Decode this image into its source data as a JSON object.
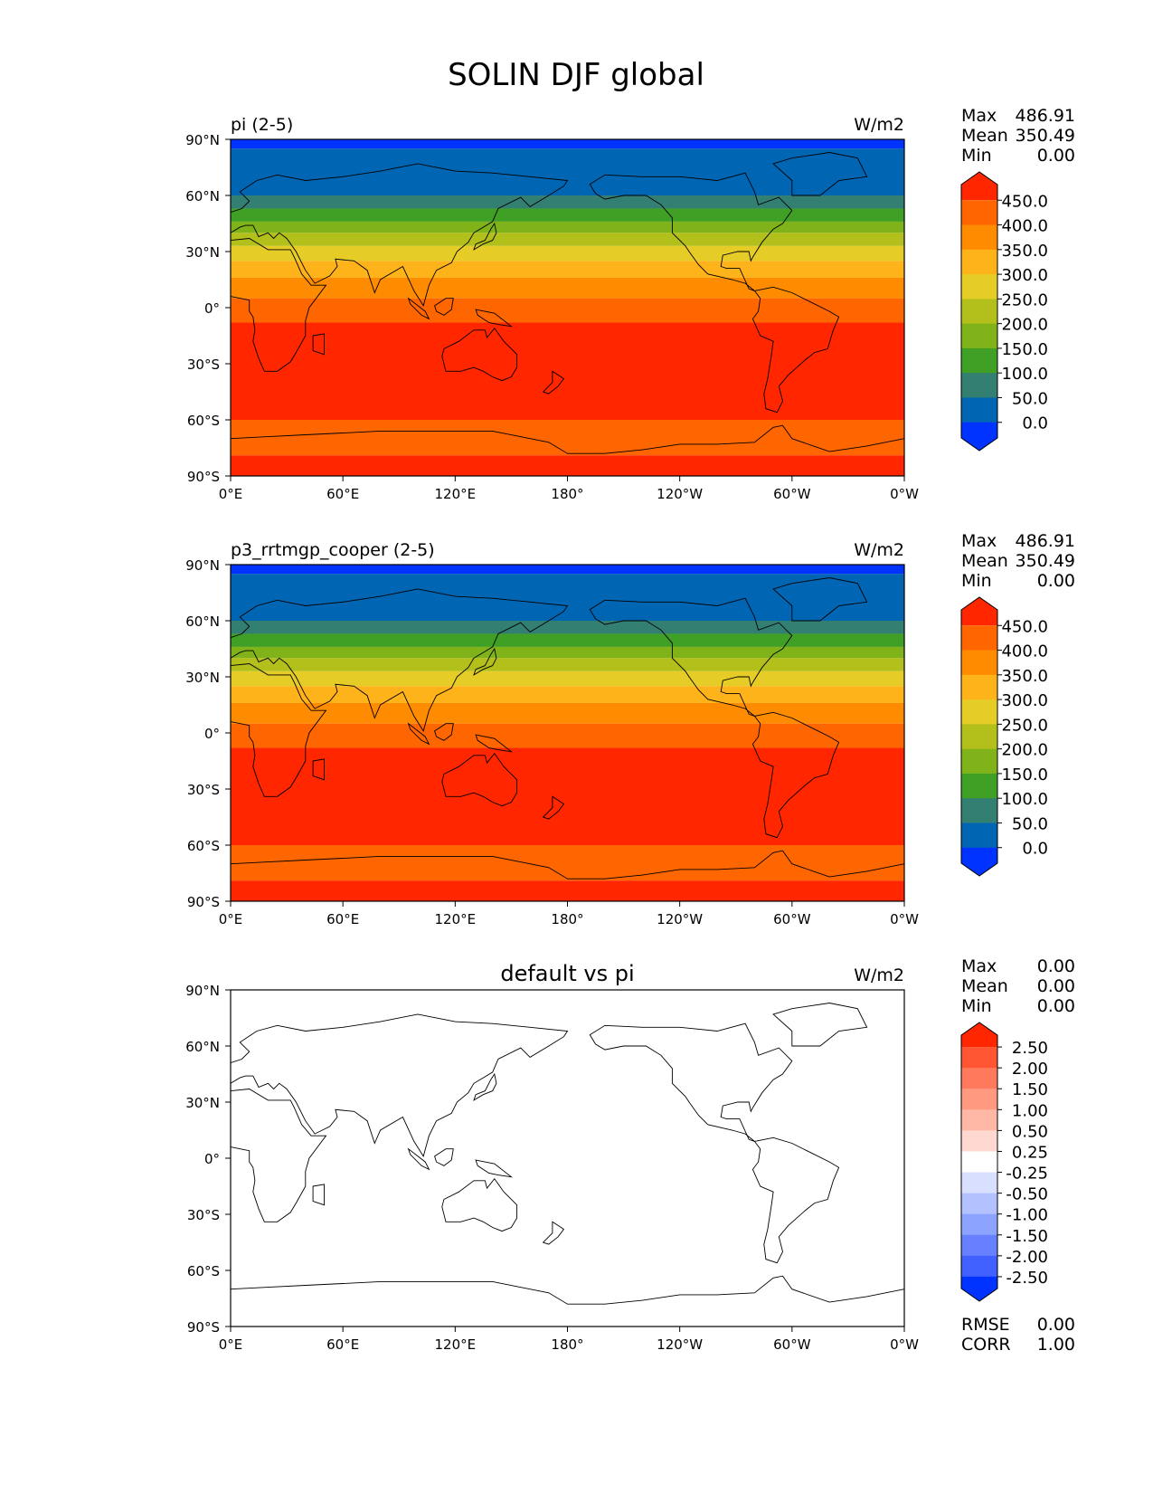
{
  "title": "SOLIN DJF global",
  "x_ticks": [
    "0°E",
    "60°E",
    "120°E",
    "180°",
    "120°W",
    "60°W",
    "0°W"
  ],
  "y_ticks": [
    "90°N",
    "60°N",
    "30°N",
    "0°",
    "30°S",
    "60°S",
    "90°S"
  ],
  "panels": [
    {
      "id": "pi",
      "left_title": "pi (2-5)",
      "center_title": "",
      "units": "W/m2",
      "stats": [
        {
          "label": "Max",
          "value": "486.91"
        },
        {
          "label": "Mean",
          "value": "350.49"
        },
        {
          "label": "Min",
          "value": "0.00"
        }
      ],
      "colorbar": {
        "labels": [
          "450.0",
          "400.0",
          "350.0",
          "300.0",
          "250.0",
          "200.0",
          "150.0",
          "100.0",
          "50.0",
          "0.0"
        ],
        "colors": [
          "#ff2600",
          "#ff6600",
          "#ff8c00",
          "#ffb31a",
          "#e6cc26",
          "#b3bf1a",
          "#80b31a",
          "#40a026",
          "#338073",
          "#0066b3",
          "#0033ff"
        ]
      },
      "bands": [
        {
          "lat_top": 90,
          "lat_bottom": 85,
          "color": "#0033ff"
        },
        {
          "lat_top": 85,
          "lat_bottom": 60,
          "color": "#0066b3"
        },
        {
          "lat_top": 60,
          "lat_bottom": 53,
          "color": "#338073"
        },
        {
          "lat_top": 53,
          "lat_bottom": 46,
          "color": "#40a026"
        },
        {
          "lat_top": 46,
          "lat_bottom": 40,
          "color": "#80b31a"
        },
        {
          "lat_top": 40,
          "lat_bottom": 33,
          "color": "#b3bf1a"
        },
        {
          "lat_top": 33,
          "lat_bottom": 25,
          "color": "#e6cc26"
        },
        {
          "lat_top": 25,
          "lat_bottom": 16,
          "color": "#ffb31a"
        },
        {
          "lat_top": 16,
          "lat_bottom": 5,
          "color": "#ff8c00"
        },
        {
          "lat_top": 5,
          "lat_bottom": -8,
          "color": "#ff6600"
        },
        {
          "lat_top": -8,
          "lat_bottom": -60,
          "color": "#ff2600"
        },
        {
          "lat_top": -60,
          "lat_bottom": -79,
          "color": "#ff6600"
        },
        {
          "lat_top": -79,
          "lat_bottom": -90,
          "color": "#ff2600"
        }
      ]
    },
    {
      "id": "p3",
      "left_title": "p3_rrtmgp_cooper (2-5)",
      "center_title": "",
      "units": "W/m2",
      "stats": [
        {
          "label": "Max",
          "value": "486.91"
        },
        {
          "label": "Mean",
          "value": "350.49"
        },
        {
          "label": "Min",
          "value": "0.00"
        }
      ],
      "colorbar": {
        "labels": [
          "450.0",
          "400.0",
          "350.0",
          "300.0",
          "250.0",
          "200.0",
          "150.0",
          "100.0",
          "50.0",
          "0.0"
        ],
        "colors": [
          "#ff2600",
          "#ff6600",
          "#ff8c00",
          "#ffb31a",
          "#e6cc26",
          "#b3bf1a",
          "#80b31a",
          "#40a026",
          "#338073",
          "#0066b3",
          "#0033ff"
        ]
      },
      "bands": [
        {
          "lat_top": 90,
          "lat_bottom": 85,
          "color": "#0033ff"
        },
        {
          "lat_top": 85,
          "lat_bottom": 60,
          "color": "#0066b3"
        },
        {
          "lat_top": 60,
          "lat_bottom": 53,
          "color": "#338073"
        },
        {
          "lat_top": 53,
          "lat_bottom": 46,
          "color": "#40a026"
        },
        {
          "lat_top": 46,
          "lat_bottom": 40,
          "color": "#80b31a"
        },
        {
          "lat_top": 40,
          "lat_bottom": 33,
          "color": "#b3bf1a"
        },
        {
          "lat_top": 33,
          "lat_bottom": 25,
          "color": "#e6cc26"
        },
        {
          "lat_top": 25,
          "lat_bottom": 16,
          "color": "#ffb31a"
        },
        {
          "lat_top": 16,
          "lat_bottom": 5,
          "color": "#ff8c00"
        },
        {
          "lat_top": 5,
          "lat_bottom": -8,
          "color": "#ff6600"
        },
        {
          "lat_top": -8,
          "lat_bottom": -60,
          "color": "#ff2600"
        },
        {
          "lat_top": -60,
          "lat_bottom": -79,
          "color": "#ff6600"
        },
        {
          "lat_top": -79,
          "lat_bottom": -90,
          "color": "#ff2600"
        }
      ]
    },
    {
      "id": "diff",
      "left_title": "",
      "center_title": "default vs pi",
      "units": "W/m2",
      "stats": [
        {
          "label": "Max",
          "value": "0.00"
        },
        {
          "label": "Mean",
          "value": "0.00"
        },
        {
          "label": "Min",
          "value": "0.00"
        }
      ],
      "colorbar": {
        "labels": [
          "2.50",
          "2.00",
          "1.50",
          "1.00",
          "0.50",
          "0.25",
          "-0.25",
          "-0.50",
          "-1.00",
          "-1.50",
          "-2.00",
          "-2.50"
        ],
        "colors": [
          "#ff2600",
          "#ff5533",
          "#ff7a5c",
          "#ff9980",
          "#ffb8a6",
          "#ffd9d1",
          "#ffffff",
          "#d9e0ff",
          "#b3c2ff",
          "#8ca3ff",
          "#6680ff",
          "#4060ff",
          "#0033ff"
        ]
      },
      "bands": [
        {
          "lat_top": 90,
          "lat_bottom": -90,
          "color": "#ffffff"
        }
      ],
      "extra_stats": [
        {
          "label": "RMSE",
          "value": "0.00"
        },
        {
          "label": "CORR",
          "value": "1.00"
        }
      ]
    }
  ]
}
